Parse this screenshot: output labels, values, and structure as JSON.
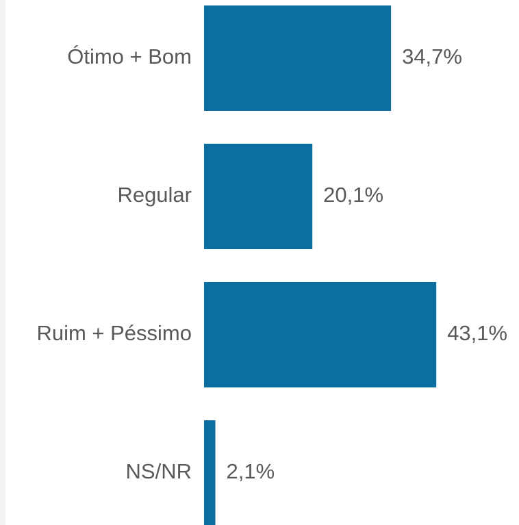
{
  "chart_data": {
    "type": "barh",
    "categories": [
      "Ótimo + Bom",
      "Regular",
      "Ruim + Péssimo",
      "NS/NR"
    ],
    "values": [
      34.7,
      20.1,
      43.1,
      2.1
    ],
    "value_labels": [
      "34,7%",
      "20,1%",
      "43,1%",
      "2,1%"
    ],
    "color": "#0d6fa0"
  }
}
